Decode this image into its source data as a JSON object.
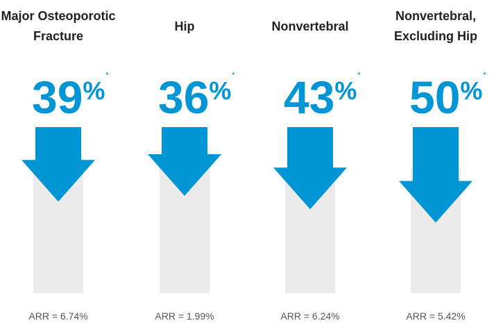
{
  "chart_data": {
    "type": "arrow",
    "categories": [
      "Major Osteoporotic Fracture",
      "Hip",
      "Nonvertebral",
      "Nonvertebral, Excluding Hip"
    ],
    "values": [
      39,
      36,
      43,
      50
    ],
    "value_labels": [
      "39%",
      "36%",
      "43%",
      "50%"
    ],
    "marker": "*",
    "annotations": [
      "ARR = 6.74%",
      "ARR = 1.99%",
      "ARR = 6.24%",
      "ARR = 5.42%"
    ],
    "color": "#0096d6"
  }
}
